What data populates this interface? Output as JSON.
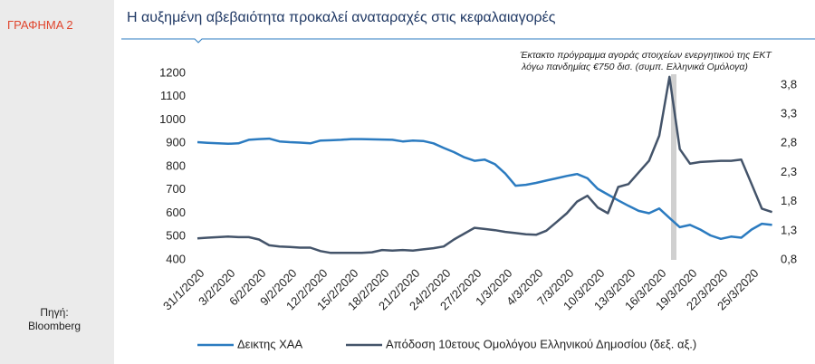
{
  "sidebar": {
    "label": "ΓΡΑΦΗΜΑ 2",
    "source": [
      "Πηγή:",
      "Bloomberg"
    ]
  },
  "chart_data": {
    "type": "line",
    "title": "Η αυξημένη αβεβαιότητα προκαλεί αναταραχές στις κεφαλαιαγορές",
    "annotation": [
      "Έκτακτο πρόγραμμα αγοράς στοιχείων ενεργητικού της ΕΚΤ",
      "λόγω πανδημίας  €750 δισ. (συμπ. Ελληνικά Ομόλογα)"
    ],
    "categories": [
      "31/1/2020",
      null,
      null,
      "3/2/2020",
      null,
      null,
      "6/2/2020",
      null,
      null,
      "9/2/2020",
      null,
      null,
      "12/2/2020",
      null,
      null,
      "15/2/2020",
      null,
      null,
      "18/2/2020",
      null,
      null,
      "21/2/2020",
      null,
      null,
      "24/2/2020",
      null,
      null,
      "27/2/2020",
      null,
      null,
      "1/3/2020",
      null,
      null,
      "4/3/2020",
      null,
      null,
      "7/3/2020",
      null,
      null,
      "10/3/2020",
      null,
      null,
      "13/3/2020",
      null,
      null,
      "16/3/2020",
      null,
      null,
      "19/3/2020",
      null,
      null,
      "22/3/2020",
      null,
      null,
      "25/3/2020",
      null,
      null
    ],
    "series": [
      {
        "name": "Δεικτης ΧΑΑ",
        "color": "#2b7bc0",
        "values": [
          905,
          902,
          900,
          898,
          900,
          915,
          918,
          920,
          908,
          905,
          903,
          900,
          912,
          913,
          915,
          918,
          918,
          917,
          916,
          915,
          908,
          912,
          910,
          900,
          880,
          862,
          840,
          825,
          830,
          810,
          770,
          718,
          722,
          730,
          740,
          750,
          760,
          768,
          750,
          705,
          680,
          655,
          632,
          610,
          600,
          620,
          580,
          540,
          550,
          530,
          505,
          490,
          500,
          495,
          530,
          555,
          550
        ]
      },
      {
        "name": "Απόδοση 10ετους Ομολόγου Ελληνικού Δημοσίου (δεξ. αξ.)",
        "color": "#44546a",
        "axis": "y2",
        "values": [
          1.17,
          1.18,
          1.19,
          1.2,
          1.19,
          1.19,
          1.15,
          1.05,
          1.03,
          1.02,
          1.01,
          1.01,
          0.95,
          0.92,
          0.92,
          0.92,
          0.92,
          0.93,
          0.97,
          0.96,
          0.97,
          0.96,
          0.98,
          1.0,
          1.03,
          1.15,
          1.25,
          1.35,
          1.33,
          1.31,
          1.28,
          1.26,
          1.24,
          1.23,
          1.3,
          1.45,
          1.6,
          1.8,
          1.9,
          1.7,
          1.6,
          2.05,
          2.1,
          2.3,
          2.5,
          2.93,
          3.94,
          2.7,
          2.45,
          2.48,
          2.49,
          2.5,
          2.5,
          2.52,
          2.1,
          1.68,
          1.62
        ]
      }
    ],
    "ylim": [
      400,
      1200
    ],
    "yticks": [
      400,
      500,
      600,
      700,
      800,
      900,
      1000,
      1100,
      1200
    ],
    "y2lim": [
      0.8,
      4.0
    ],
    "y2ticks": [
      {
        "value": 0.8,
        "label": "0,8"
      },
      {
        "value": 1.3,
        "label": "1,3"
      },
      {
        "value": 1.8,
        "label": "1,8"
      },
      {
        "value": 2.3,
        "label": "2,3"
      },
      {
        "value": 2.8,
        "label": "2,8"
      },
      {
        "value": 3.3,
        "label": "3,3"
      },
      {
        "value": 3.8,
        "label": "3,8"
      }
    ],
    "grid": false
  }
}
